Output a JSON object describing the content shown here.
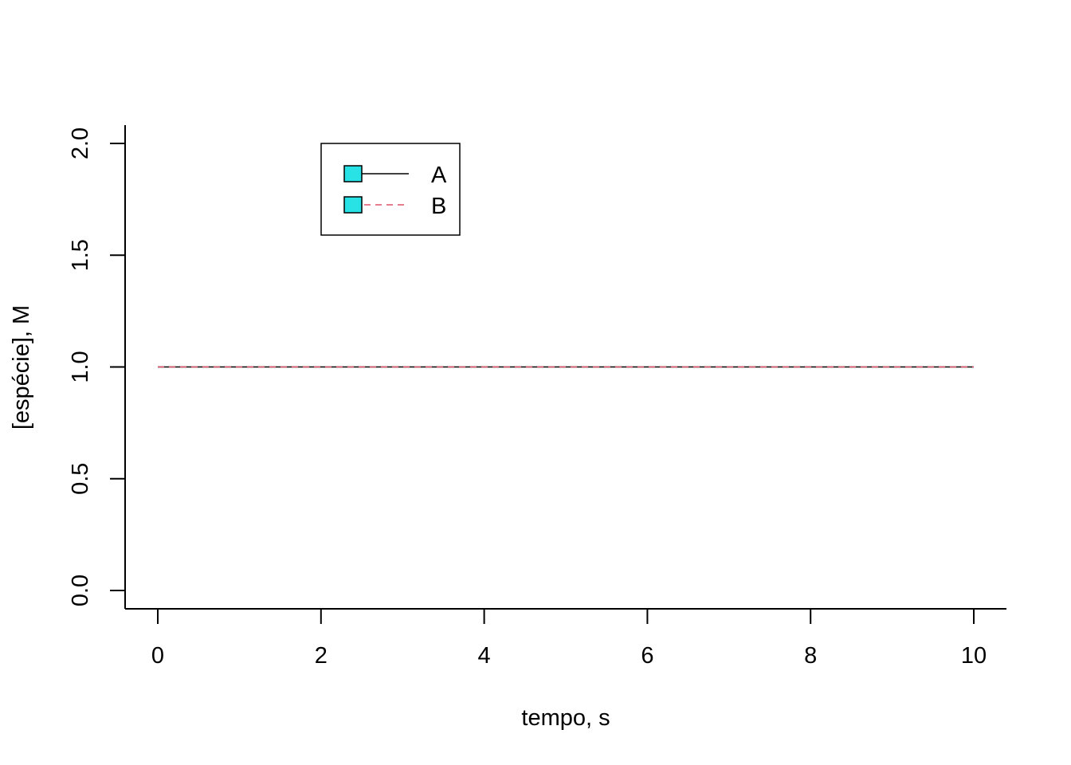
{
  "chart_data": {
    "type": "line",
    "title": "",
    "xlabel": "tempo, s",
    "ylabel": "[espécie], M",
    "xlim": [
      0,
      10
    ],
    "ylim": [
      0,
      2
    ],
    "x_ticks": [
      "0",
      "2",
      "4",
      "6",
      "8",
      "10"
    ],
    "y_ticks": [
      "0.0",
      "0.5",
      "1.0",
      "1.5",
      "2.0"
    ],
    "x": [
      0,
      10
    ],
    "series": [
      {
        "name": "A",
        "values": [
          1,
          1
        ],
        "color": "#000000",
        "dash": "solid"
      },
      {
        "name": "B",
        "values": [
          1,
          1
        ],
        "color": "#DF536B",
        "dash": "dashed"
      }
    ],
    "legend": {
      "position": "top-left",
      "marker_color": "#28E2E5"
    },
    "grid": false
  }
}
